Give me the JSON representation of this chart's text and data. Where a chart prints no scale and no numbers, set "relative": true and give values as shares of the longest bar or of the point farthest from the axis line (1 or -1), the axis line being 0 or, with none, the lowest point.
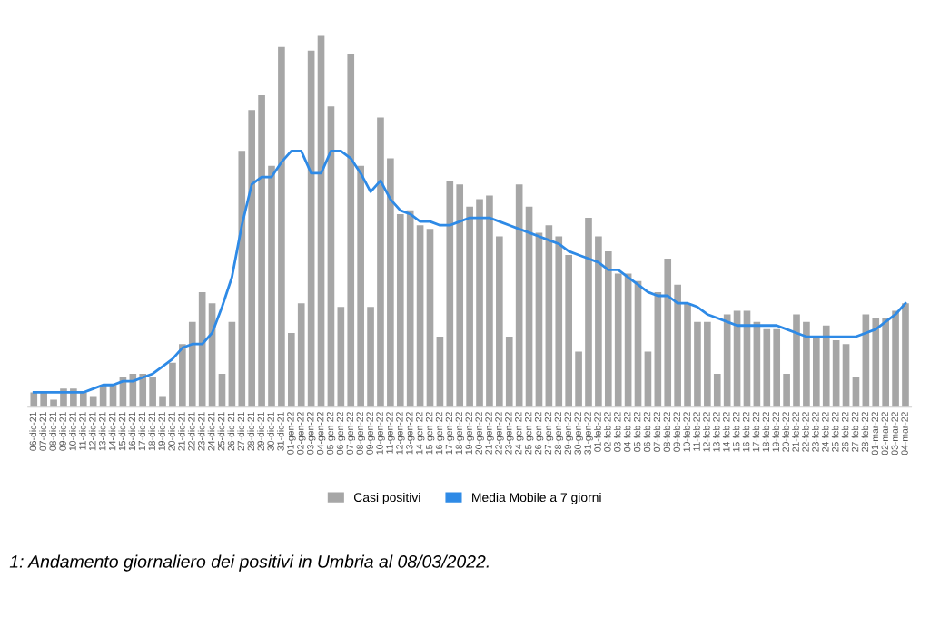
{
  "chart_data": {
    "type": "bar",
    "relative": true,
    "legend": "bottom",
    "categories": [
      "06-dic-21",
      "07-dic-21",
      "08-dic-21",
      "09-dic-21",
      "10-dic-21",
      "11-dic-21",
      "12-dic-21",
      "13-dic-21",
      "14-dic-21",
      "15-dic-21",
      "16-dic-21",
      "17-dic-21",
      "18-dic-21",
      "19-dic-21",
      "20-dic-21",
      "21-dic-21",
      "22-dic-21",
      "23-dic-21",
      "24-dic-21",
      "25-dic-21",
      "26-dic-21",
      "27-dic-21",
      "28-dic-21",
      "29-dic-21",
      "30-dic-21",
      "31-dic-21",
      "01-gen-22",
      "02-gen-22",
      "03-gen-22",
      "04-gen-22",
      "05-gen-22",
      "06-gen-22",
      "07-gen-22",
      "08-gen-22",
      "09-gen-22",
      "10-gen-22",
      "11-gen-22",
      "12-gen-22",
      "13-gen-22",
      "14-gen-22",
      "15-gen-22",
      "16-gen-22",
      "17-gen-22",
      "18-gen-22",
      "19-gen-22",
      "20-gen-22",
      "21-gen-22",
      "22-gen-22",
      "23-gen-22",
      "24-gen-22",
      "25-gen-22",
      "26-gen-22",
      "27-gen-22",
      "28-gen-22",
      "29-gen-22",
      "30-gen-22",
      "31-gen-22",
      "01-feb-22",
      "02-feb-22",
      "03-feb-22",
      "04-feb-22",
      "05-feb-22",
      "06-feb-22",
      "07-feb-22",
      "08-feb-22",
      "09-feb-22",
      "10-feb-22",
      "11-feb-22",
      "12-feb-22",
      "13-feb-22",
      "14-feb-22",
      "15-feb-22",
      "16-feb-22",
      "17-feb-22",
      "18-feb-22",
      "19-feb-22",
      "20-feb-22",
      "21-feb-22",
      "22-feb-22",
      "23-feb-22",
      "24-feb-22",
      "25-feb-22",
      "26-feb-22",
      "27-feb-22",
      "28-feb-22",
      "01-mar-22",
      "02-mar-22",
      "03-mar-22",
      "04-mar-22"
    ],
    "series": [
      {
        "name": "Casi positivi",
        "color": "#a6a6a6",
        "values": [
          0.04,
          0.04,
          0.02,
          0.05,
          0.05,
          0.04,
          0.03,
          0.06,
          0.06,
          0.08,
          0.09,
          0.09,
          0.08,
          0.03,
          0.12,
          0.17,
          0.23,
          0.31,
          0.28,
          0.09,
          0.23,
          0.69,
          0.8,
          0.84,
          0.65,
          0.97,
          0.2,
          0.28,
          0.96,
          1,
          0.81,
          0.27,
          0.95,
          0.65,
          0.27,
          0.78,
          0.67,
          0.52,
          0.53,
          0.49,
          0.48,
          0.19,
          0.61,
          0.6,
          0.54,
          0.56,
          0.57,
          0.46,
          0.19,
          0.6,
          0.54,
          0.47,
          0.49,
          0.46,
          0.41,
          0.15,
          0.51,
          0.46,
          0.42,
          0.36,
          0.36,
          0.34,
          0.15,
          0.31,
          0.4,
          0.33,
          0.28,
          0.23,
          0.23,
          0.09,
          0.25,
          0.26,
          0.26,
          0.23,
          0.21,
          0.21,
          0.09,
          0.25,
          0.23,
          0.19,
          0.22,
          0.18,
          0.17,
          0.08,
          0.25,
          0.24,
          0.24,
          0.26,
          0.28
        ]
      },
      {
        "name": "Media Mobile a 7 giorni",
        "type": "line",
        "color": "#2e8ae6",
        "values": [
          0.04,
          0.04,
          0.04,
          0.04,
          0.04,
          0.04,
          0.05,
          0.06,
          0.06,
          0.07,
          0.07,
          0.08,
          0.09,
          0.11,
          0.13,
          0.16,
          0.17,
          0.17,
          0.2,
          0.27,
          0.35,
          0.49,
          0.6,
          0.62,
          0.62,
          0.66,
          0.69,
          0.69,
          0.63,
          0.63,
          0.69,
          0.69,
          0.67,
          0.63,
          0.58,
          0.61,
          0.56,
          0.53,
          0.52,
          0.5,
          0.5,
          0.49,
          0.49,
          0.5,
          0.51,
          0.51,
          0.51,
          0.5,
          0.49,
          0.48,
          0.47,
          0.46,
          0.45,
          0.44,
          0.42,
          0.41,
          0.4,
          0.39,
          0.37,
          0.37,
          0.35,
          0.33,
          0.31,
          0.3,
          0.3,
          0.28,
          0.28,
          0.27,
          0.25,
          0.24,
          0.23,
          0.22,
          0.22,
          0.22,
          0.22,
          0.22,
          0.21,
          0.2,
          0.19,
          0.19,
          0.19,
          0.19,
          0.19,
          0.19,
          0.2,
          0.21,
          0.23,
          0.25,
          0.28
        ]
      }
    ],
    "annotations": [
      "1: Andamento giornaliero dei positivi in Umbria al 08/03/2022."
    ]
  }
}
